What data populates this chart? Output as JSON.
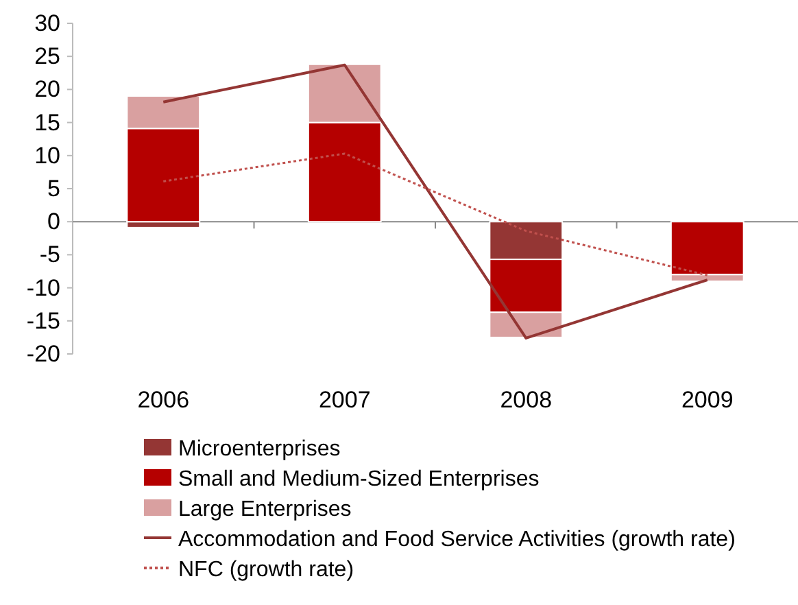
{
  "chart_data": {
    "type": "bar",
    "stacked": true,
    "categories": [
      "2006",
      "2007",
      "2008",
      "2009"
    ],
    "ylim": [
      -20,
      30
    ],
    "yticks": [
      -20,
      -15,
      -10,
      -5,
      0,
      5,
      10,
      15,
      20,
      25,
      30
    ],
    "legend": "bottom",
    "series": [
      {
        "name": "Microenterprises",
        "color": "#943634",
        "values": [
          -0.9,
          null,
          -5.7,
          0
        ]
      },
      {
        "name": "Small and Medium-Sized Enterprises",
        "color": "#b50000",
        "values": [
          14.1,
          15.0,
          -8.0,
          -8.0
        ]
      },
      {
        "name": "Large Enterprises",
        "color": "#d9a0a0",
        "values": [
          4.9,
          8.8,
          -3.8,
          -1.0
        ]
      },
      {
        "name": "Accommodation and Food Service Activities (growth rate)",
        "type": "line",
        "color": "#943634",
        "line_style": "solid",
        "values": [
          18.1,
          23.7,
          -17.6,
          -8.8
        ]
      },
      {
        "name": "NFC (growth rate)",
        "type": "line",
        "color": "#c0504d",
        "line_style": "dotted",
        "values": [
          6.1,
          10.3,
          -1.4,
          -8.1
        ]
      }
    ]
  }
}
